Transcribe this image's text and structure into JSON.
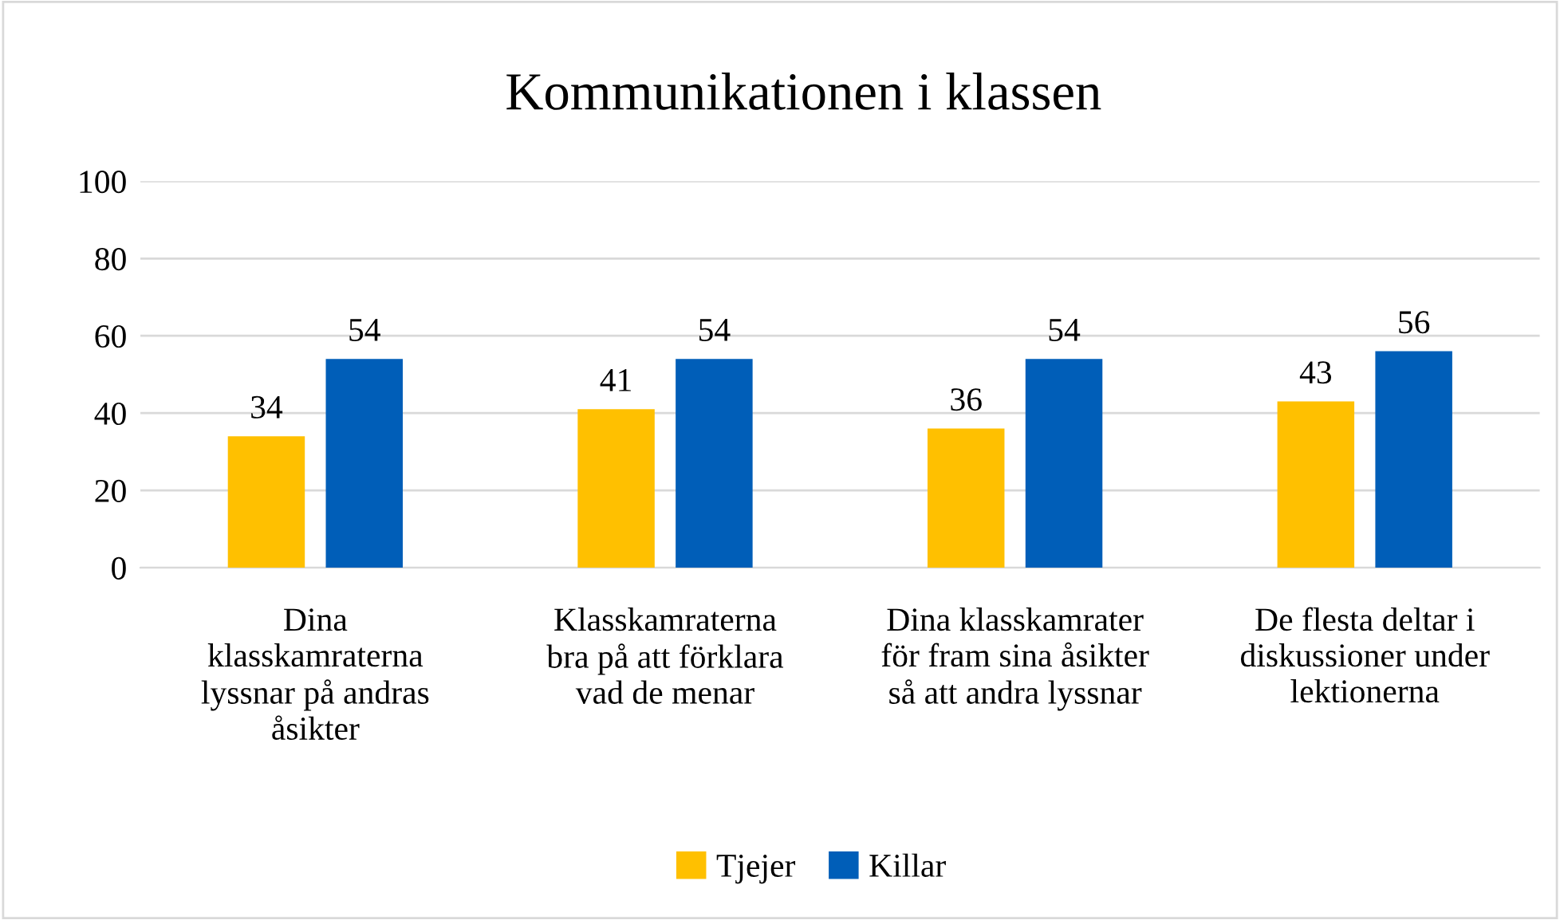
{
  "chart_data": {
    "type": "bar",
    "title": "Kommunikationen i klassen",
    "categories": [
      "Dina\nklasskamraterna\nlyssnar på andras\nåsikter",
      "Klasskamraterna\nbra på att förklara\nvad de menar",
      "Dina klasskamrater\nför fram sina åsikter\nså att andra lyssnar",
      "De flesta deltar i\ndiskussioner under\nlektionerna"
    ],
    "series": [
      {
        "name": "Tjejer",
        "color": "#ffc000",
        "values": [
          34,
          41,
          36,
          43
        ]
      },
      {
        "name": "Killar",
        "color": "#005eb8",
        "values": [
          54,
          54,
          54,
          56
        ]
      }
    ],
    "ylim": [
      0,
      100
    ],
    "yticks": [
      0,
      20,
      40,
      60,
      80,
      100
    ],
    "grid": "y",
    "legend": "bottom",
    "data_labels": true
  }
}
